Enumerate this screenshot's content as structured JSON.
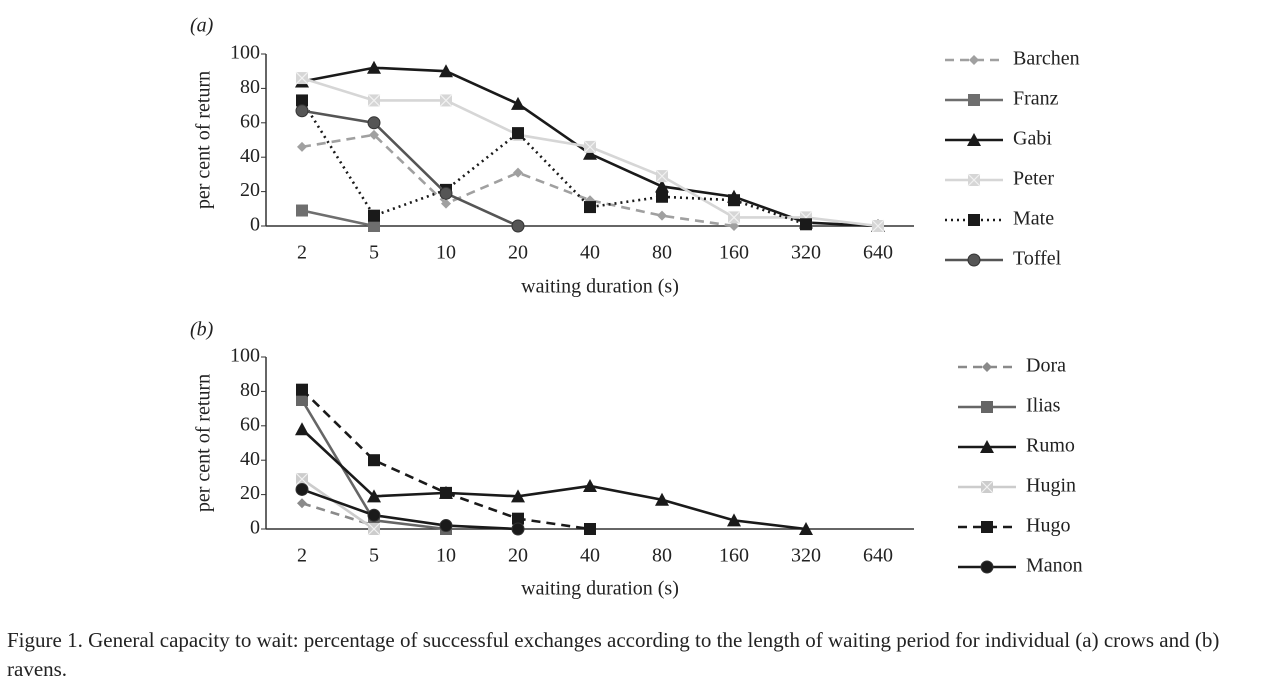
{
  "chart_data": [
    {
      "type": "line",
      "panel_label": "(a)",
      "ylabel": "per cent  of  return",
      "xlabel": "waiting  duration (s)",
      "categories": [
        "2",
        "5",
        "10",
        "20",
        "40",
        "80",
        "160",
        "320",
        "640"
      ],
      "ylim": [
        0,
        100
      ],
      "yticks": [
        0,
        20,
        40,
        60,
        80,
        100
      ],
      "series": [
        {
          "name": "Barchen",
          "color": "#a0a0a0",
          "dash": "dashed",
          "marker": "diamond",
          "values": [
            46,
            53,
            13,
            31,
            15,
            6,
            0,
            null,
            null
          ]
        },
        {
          "name": "Franz",
          "color": "#6e6e6e",
          "dash": "solid",
          "marker": "square",
          "values": [
            9,
            0,
            null,
            null,
            null,
            null,
            null,
            null,
            null
          ]
        },
        {
          "name": "Gabi",
          "color": "#1a1a1a",
          "dash": "solid",
          "marker": "triangle",
          "values": [
            84,
            92,
            90,
            71,
            42,
            23,
            17,
            2,
            0
          ]
        },
        {
          "name": "Peter",
          "color": "#d6d6d6",
          "dash": "solid",
          "marker": "square-x",
          "values": [
            86,
            73,
            73,
            53,
            46,
            29,
            5,
            5,
            0
          ]
        },
        {
          "name": "Mate",
          "color": "#1a1a1a",
          "dash": "dotted",
          "marker": "square",
          "values": [
            73,
            6,
            21,
            54,
            11,
            17,
            15,
            1,
            null
          ]
        },
        {
          "name": "Toffel",
          "color": "#555555",
          "dash": "solid",
          "marker": "circle",
          "values": [
            67,
            60,
            19,
            0,
            null,
            null,
            null,
            null,
            null
          ]
        }
      ]
    },
    {
      "type": "line",
      "panel_label": "(b)",
      "ylabel": "per cent  of  return",
      "xlabel": "waiting  duration (s)",
      "categories": [
        "2",
        "5",
        "10",
        "20",
        "40",
        "80",
        "160",
        "320",
        "640"
      ],
      "ylim": [
        0,
        100
      ],
      "yticks": [
        0,
        20,
        40,
        60,
        80,
        100
      ],
      "series": [
        {
          "name": "Dora",
          "color": "#8a8a8a",
          "dash": "dashed",
          "marker": "diamond",
          "values": [
            15,
            2,
            null,
            null,
            null,
            null,
            null,
            null,
            null
          ]
        },
        {
          "name": "Ilias",
          "color": "#666666",
          "dash": "solid",
          "marker": "square",
          "values": [
            75,
            5,
            0,
            null,
            null,
            null,
            null,
            null,
            null
          ]
        },
        {
          "name": "Rumo",
          "color": "#1a1a1a",
          "dash": "solid",
          "marker": "triangle",
          "values": [
            58,
            19,
            21,
            19,
            25,
            17,
            5,
            0,
            null
          ]
        },
        {
          "name": "Hugin",
          "color": "#cccccc",
          "dash": "solid",
          "marker": "square-x",
          "values": [
            29,
            0,
            null,
            null,
            null,
            null,
            null,
            null,
            null
          ]
        },
        {
          "name": "Hugo",
          "color": "#1a1a1a",
          "dash": "dashed",
          "marker": "square",
          "values": [
            81,
            40,
            21,
            6,
            0,
            null,
            null,
            null,
            null
          ]
        },
        {
          "name": "Manon",
          "color": "#1a1a1a",
          "dash": "solid",
          "marker": "circle",
          "values": [
            23,
            8,
            2,
            0,
            null,
            null,
            null,
            null,
            null
          ]
        }
      ]
    }
  ],
  "caption": "Figure 1. General capacity to wait: percentage of successful exchanges according to the length of waiting period for individual (a) crows and (b) ravens."
}
